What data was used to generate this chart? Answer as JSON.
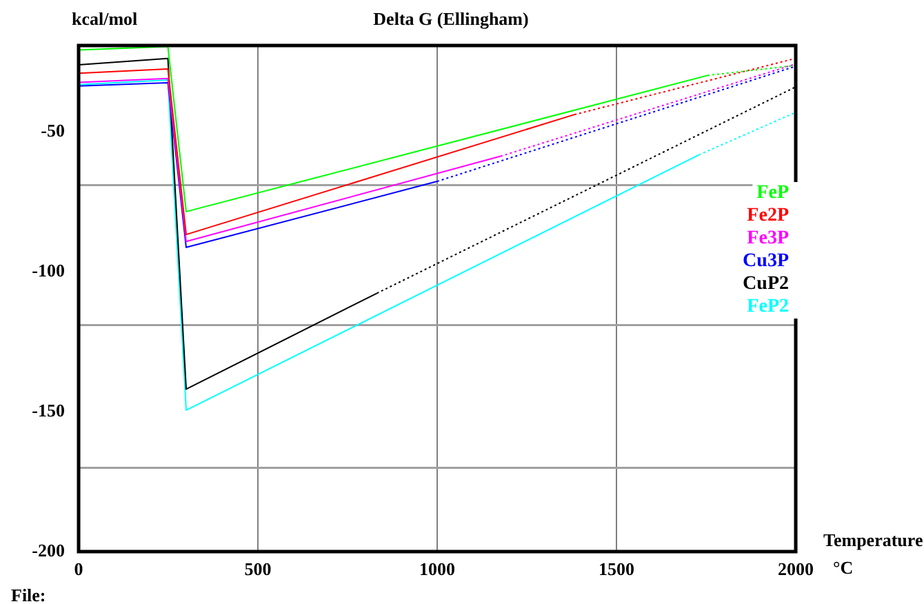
{
  "chart_data": {
    "type": "line",
    "title": "Delta G (Ellingham)",
    "ylabel": "kcal/mol",
    "xlabel": "Temperature\n°C",
    "annotations": [
      "File:"
    ],
    "xlim": [
      0,
      2000
    ],
    "xticks": [
      0,
      500,
      1000,
      1500,
      2000
    ],
    "ylim": [
      -200,
      -19
    ],
    "yticks": [
      -200,
      {
        "value": -170,
        "label": null
      },
      -150,
      {
        "value": -119,
        "label": null
      },
      -100,
      {
        "value": -69,
        "label": null
      },
      -50
    ],
    "grid": true,
    "legend": "right",
    "marker": "none",
    "series": [
      {
        "name": "FeP",
        "color": "#00ff00",
        "line_style": "solid",
        "x": [
          0,
          249,
          300,
          1754
        ],
        "values": [
          -20.6,
          -19.4,
          -78.4,
          -29.7
        ]
      },
      {
        "color": "#00ff00",
        "line_style": "dotted",
        "x": [
          1754,
          2000
        ],
        "values": [
          -29.7,
          -26.1
        ]
      },
      {
        "name": "Fe2P",
        "color": "#ff0000",
        "line_style": "solid",
        "x": [
          0,
          249,
          300,
          1383
        ],
        "values": [
          -28.9,
          -27.4,
          -86.6,
          -43.7
        ]
      },
      {
        "color": "#ff0000",
        "line_style": "dotted",
        "x": [
          1383,
          2000
        ],
        "values": [
          -43.7,
          -23.6
        ]
      },
      {
        "name": "Fe3P",
        "color": "#ff00ff",
        "line_style": "solid",
        "x": [
          0,
          249,
          300,
          1177
        ],
        "values": [
          -32.2,
          -30.8,
          -89.1,
          -58.6
        ]
      },
      {
        "color": "#ff00ff",
        "line_style": "dotted",
        "x": [
          1177,
          2000
        ],
        "values": [
          -58.6,
          -25.6
        ]
      },
      {
        "name": "Cu3P",
        "color": "#0000ff",
        "line_style": "solid",
        "x": [
          0,
          249,
          300,
          1000
        ],
        "values": [
          -33.5,
          -32.3,
          -91.2,
          -67.6
        ]
      },
      {
        "color": "#0000ff",
        "line_style": "dotted",
        "x": [
          1000,
          2000
        ],
        "values": [
          -67.6,
          -26.4
        ]
      },
      {
        "name": "CuP2",
        "color": "#000000",
        "line_style": "solid",
        "x": [
          0,
          249,
          300,
          832
        ],
        "values": [
          -25.9,
          -23.6,
          -141.9,
          -107.6
        ]
      },
      {
        "color": "#000000",
        "line_style": "dotted",
        "x": [
          832,
          2000
        ],
        "values": [
          -107.6,
          -33.8
        ]
      },
      {
        "name": "FeP2",
        "color": "#00ffff",
        "line_style": "solid",
        "x": [
          0,
          249,
          300,
          1730
        ],
        "values": [
          -33.0,
          -31.3,
          -149.4,
          -58.1
        ]
      },
      {
        "color": "#00ffff",
        "line_style": "dotted",
        "x": [
          1730,
          2000
        ],
        "values": [
          -58.1,
          -42.9
        ]
      }
    ]
  }
}
